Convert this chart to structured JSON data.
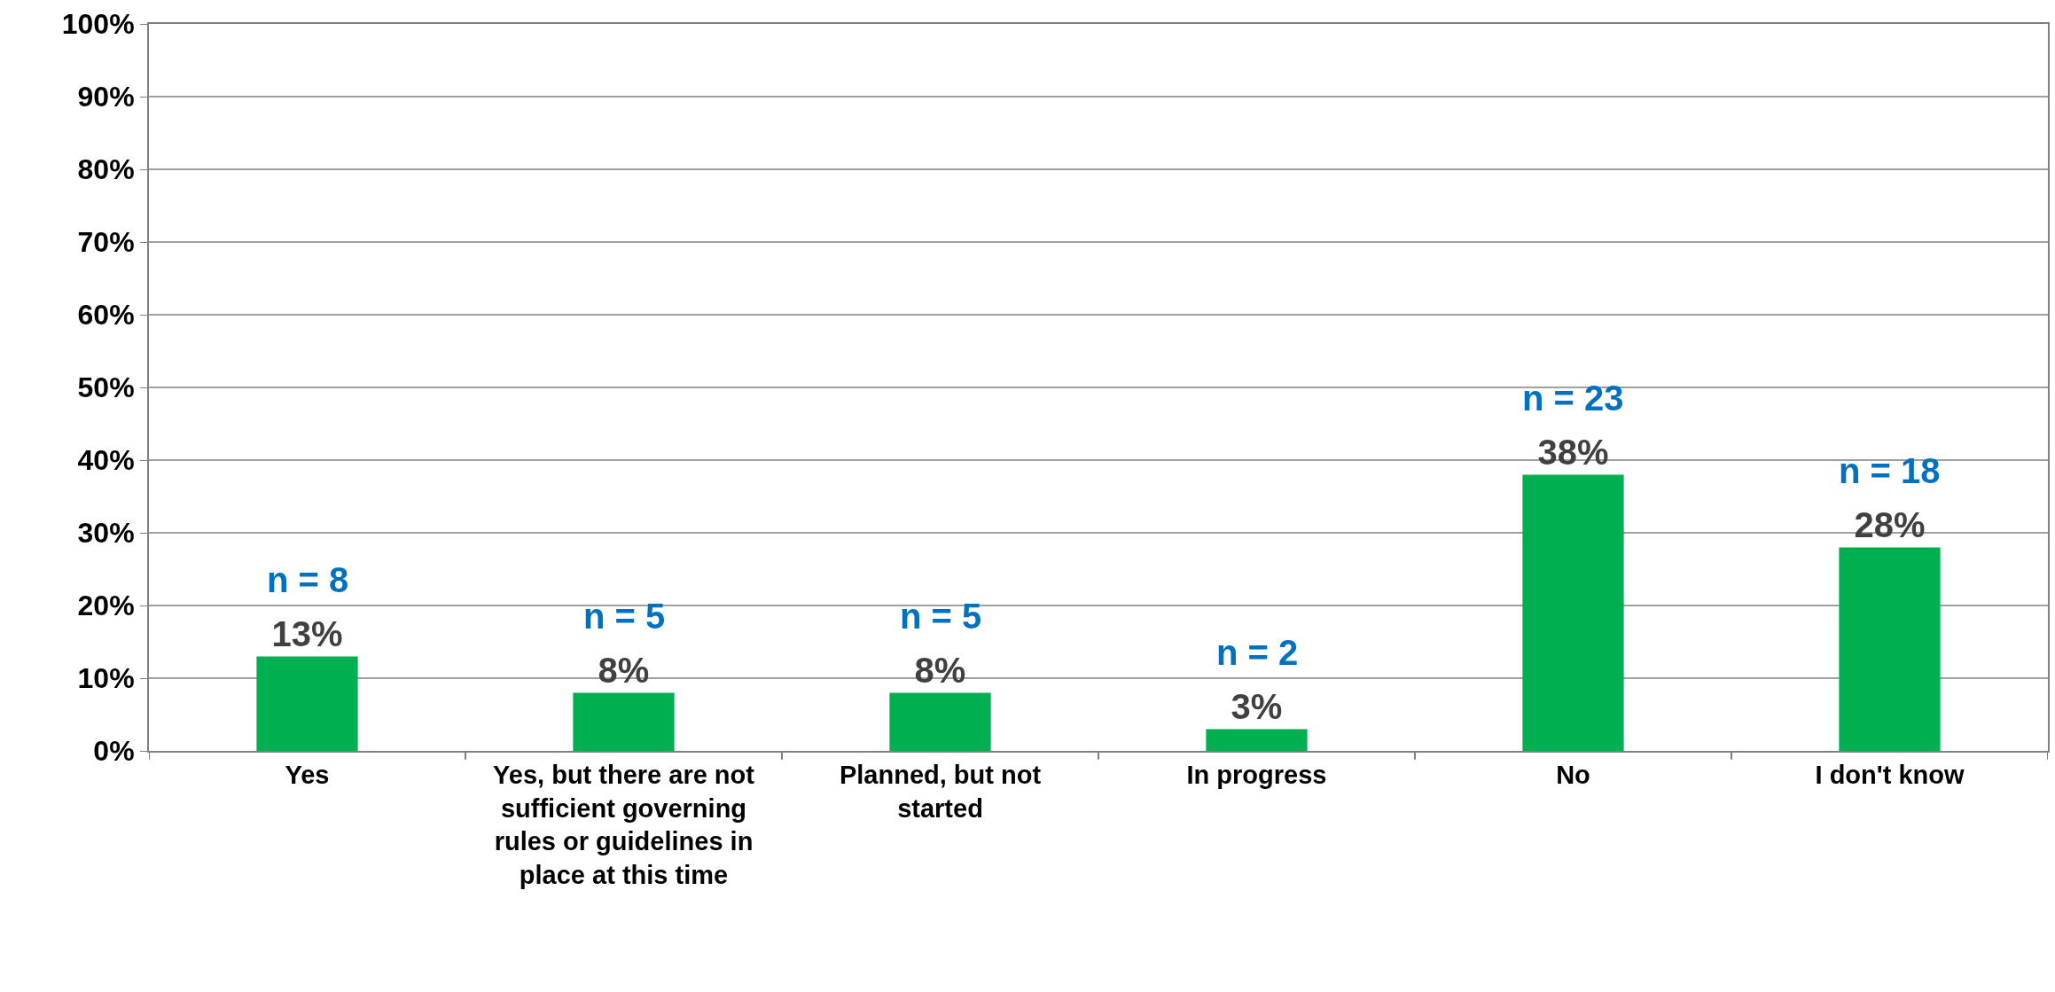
{
  "chart_data": {
    "type": "bar",
    "categories": [
      "Yes",
      "Yes, but there are not sufficient governing rules or guidelines in place at this time",
      "Planned, but not started",
      "In progress",
      "No",
      "I don't know"
    ],
    "values": [
      13,
      8,
      8,
      3,
      38,
      28
    ],
    "color": "#00b050",
    "value_labels": [
      "13%",
      "8%",
      "8%",
      "3%",
      "38%",
      "28%"
    ],
    "annotations": [
      {
        "text": "n = 8",
        "x": "Yes",
        "y": 13
      },
      {
        "text": "n = 5",
        "x": "Yes, but there are not sufficient governing rules or guidelines in place at this time",
        "y": 8
      },
      {
        "text": "n = 5",
        "x": "Planned, but not started",
        "y": 8
      },
      {
        "text": "n = 2",
        "x": "In progress",
        "y": 3
      },
      {
        "text": "n = 23",
        "x": "No",
        "y": 38
      },
      {
        "text": "n = 18",
        "x": "I don't know",
        "y": 28
      }
    ],
    "ylim": [
      0,
      100
    ],
    "yticks": [
      {
        "value": 0,
        "label": "0%"
      },
      {
        "value": 10,
        "label": "10%"
      },
      {
        "value": 20,
        "label": "20%"
      },
      {
        "value": 30,
        "label": "30%"
      },
      {
        "value": 40,
        "label": "40%"
      },
      {
        "value": 50,
        "label": "50%"
      },
      {
        "value": 60,
        "label": "60%"
      },
      {
        "value": 70,
        "label": "70%"
      },
      {
        "value": 80,
        "label": "80%"
      },
      {
        "value": 90,
        "label": "90%"
      },
      {
        "value": 100,
        "label": "100%"
      }
    ],
    "grid": "y",
    "legend": false
  }
}
